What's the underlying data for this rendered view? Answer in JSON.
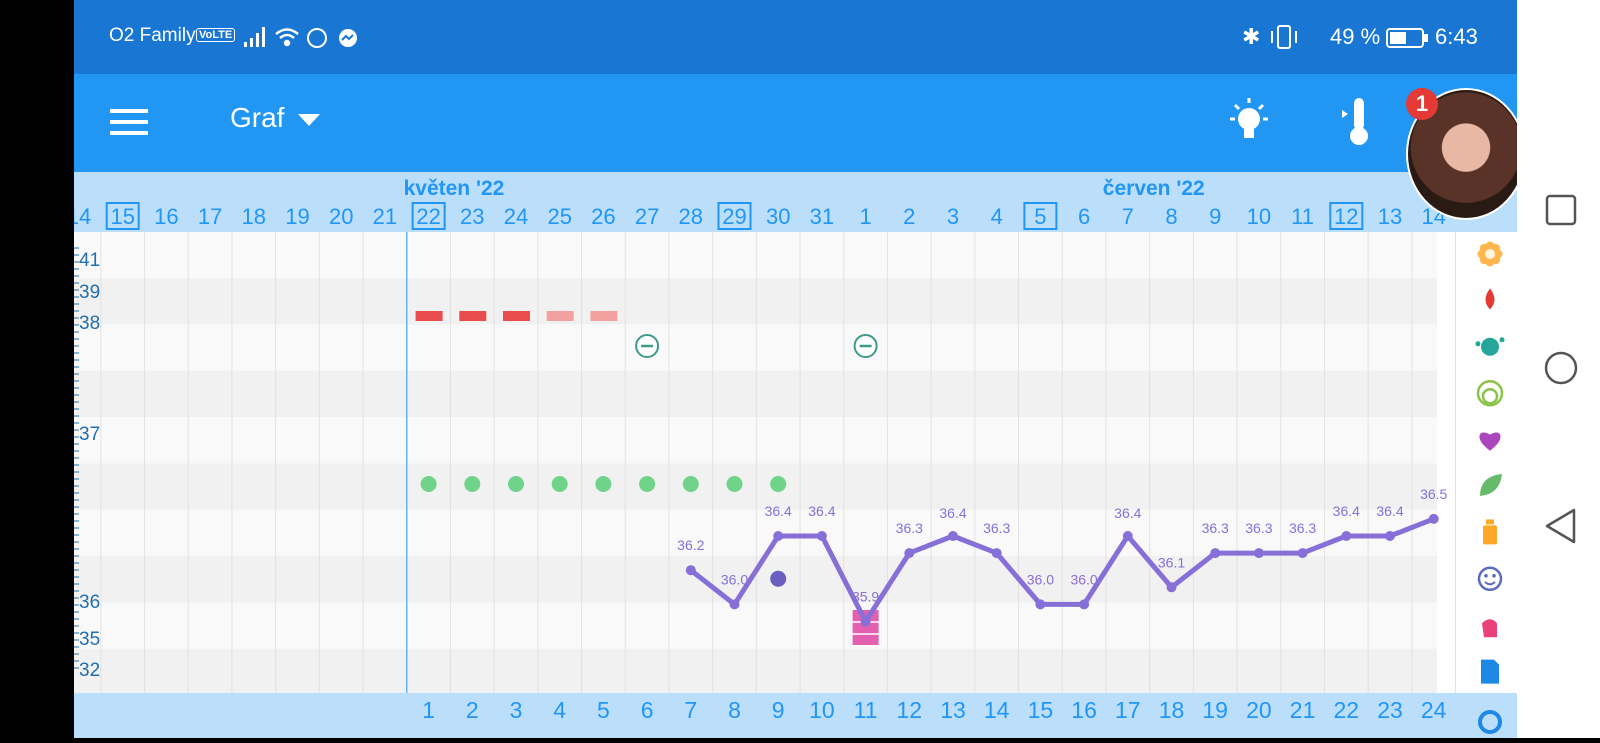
{
  "status_bar": {
    "carrier": "O2 Family",
    "volte": "VoLTE",
    "battery": "49 %",
    "time": "6:43"
  },
  "toolbar": {
    "title": "Graf",
    "notification_count": "1"
  },
  "chart_data": {
    "type": "line",
    "months": [
      {
        "label": "květen '22",
        "start_day": "22"
      },
      {
        "label": "červen '22",
        "start_day": "7"
      }
    ],
    "x_dates": [
      "14",
      "15",
      "16",
      "17",
      "18",
      "19",
      "20",
      "21",
      "22",
      "23",
      "24",
      "25",
      "26",
      "27",
      "28",
      "29",
      "30",
      "31",
      "1",
      "2",
      "3",
      "4",
      "5",
      "6",
      "7",
      "8",
      "9",
      "10",
      "11",
      "12",
      "13",
      "14"
    ],
    "boxed_dates": [
      "15",
      "22",
      "29",
      "5",
      "12"
    ],
    "cycle_days": [
      "1",
      "2",
      "3",
      "4",
      "5",
      "6",
      "7",
      "8",
      "9",
      "10",
      "11",
      "12",
      "13",
      "14",
      "15",
      "16",
      "17",
      "18",
      "19",
      "20",
      "21",
      "22",
      "23",
      "24"
    ],
    "cycle_start_date": "22",
    "y_tick_labels": [
      "41",
      "39",
      "38",
      "37",
      "36",
      "35",
      "32"
    ],
    "series": [
      {
        "type": "line",
        "color": "#8670d8",
        "points": [
          {
            "cycle_day": 7,
            "value": 36.2,
            "label": "36.2"
          },
          {
            "cycle_day": 8,
            "value": 36.0,
            "label": "36.0"
          },
          {
            "cycle_day": 9,
            "value": 36.4,
            "label": "36.4"
          },
          {
            "cycle_day": 10,
            "value": 36.4,
            "label": "36.4"
          },
          {
            "cycle_day": 11,
            "value": 35.9,
            "label": "35.9"
          },
          {
            "cycle_day": 12,
            "value": 36.3,
            "label": "36.3"
          },
          {
            "cycle_day": 13,
            "value": 36.4,
            "label": "36.4"
          },
          {
            "cycle_day": 14,
            "value": 36.3,
            "label": "36.3"
          },
          {
            "cycle_day": 15,
            "value": 36.0,
            "label": "36.0"
          },
          {
            "cycle_day": 16,
            "value": 36.0,
            "label": "36.0"
          },
          {
            "cycle_day": 17,
            "value": 36.4,
            "label": "36.4"
          },
          {
            "cycle_day": 18,
            "value": 36.1,
            "label": "36.1"
          },
          {
            "cycle_day": 19,
            "value": 36.3,
            "label": "36.3"
          },
          {
            "cycle_day": 20,
            "value": 36.3,
            "label": "36.3"
          },
          {
            "cycle_day": 21,
            "value": 36.3,
            "label": "36.3"
          },
          {
            "cycle_day": 22,
            "value": 36.4,
            "label": "36.4"
          },
          {
            "cycle_day": 23,
            "value": 36.4,
            "label": "36.4"
          },
          {
            "cycle_day": 24,
            "value": 36.5,
            "label": "36.5"
          }
        ]
      }
    ],
    "extra_point": {
      "cycle_day": 9,
      "value": 36.15,
      "color": "#6a5fc1"
    },
    "period": [
      {
        "cycle_day": 1,
        "style": "solid"
      },
      {
        "cycle_day": 2,
        "style": "solid"
      },
      {
        "cycle_day": 3,
        "style": "solid"
      },
      {
        "cycle_day": 4,
        "style": "light"
      },
      {
        "cycle_day": 5,
        "style": "light"
      }
    ],
    "negative_tests": [
      6,
      11
    ],
    "green_dots": [
      1,
      2,
      3,
      4,
      5,
      6,
      7,
      8,
      9
    ],
    "pink_marker_day": 11,
    "legend_icons": [
      "flower-icon",
      "drop-icon",
      "splash-icon",
      "rings-icon",
      "heart-icon",
      "leaf-icon",
      "bottle-icon",
      "smiley-icon",
      "hand-icon",
      "document-icon",
      "circle-arrows-icon"
    ],
    "colors": {
      "header_bg": "#bbdefb",
      "day_text": "#2196f3",
      "axis_text": "#1f6fb0",
      "period": "#e84c4c",
      "green": "#6fd48a",
      "negative": "#3f9a8c",
      "pink": "#e35fb0",
      "line": "#8670d8"
    }
  }
}
